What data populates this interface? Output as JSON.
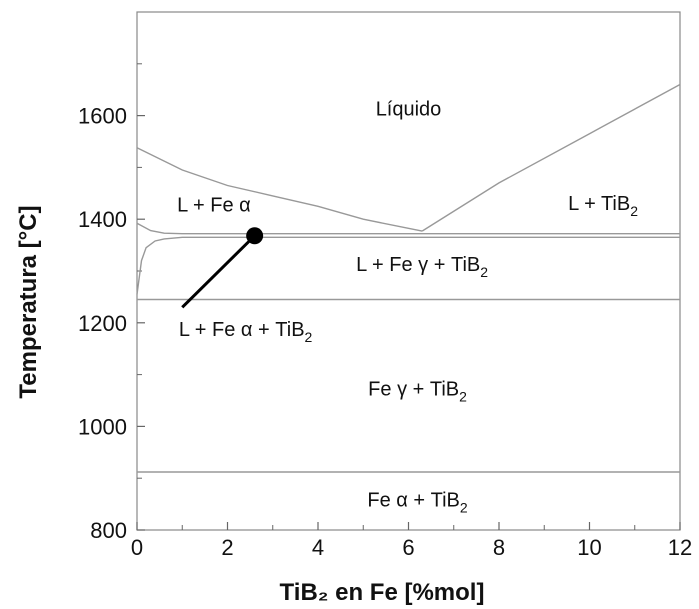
{
  "chart_data": {
    "type": "line",
    "xlabel": "TiB₂ en Fe [%mol]",
    "ylabel": "Temperatura [°C]",
    "xlim": [
      0,
      12
    ],
    "ylim": [
      800,
      1800
    ],
    "x_ticks": [
      0,
      2,
      4,
      6,
      8,
      10,
      12
    ],
    "y_ticks": [
      800,
      1000,
      1200,
      1400,
      1600
    ],
    "grid": false,
    "lines": [
      {
        "x": [
          0,
          1,
          2,
          3,
          4,
          5,
          6.3
        ],
        "y": [
          1538,
          1495,
          1465,
          1445,
          1425,
          1400,
          1377
        ]
      },
      {
        "x": [
          6.3,
          8,
          10,
          12
        ],
        "y": [
          1377,
          1470,
          1565,
          1660
        ]
      },
      {
        "x": [
          0,
          0.3,
          0.6,
          1.0,
          2.0,
          12.0
        ],
        "y": [
          1392,
          1378,
          1373,
          1372,
          1372,
          1372
        ]
      },
      {
        "x": [
          0,
          0.1,
          0.2,
          0.4,
          0.6,
          1.0,
          12.0
        ],
        "y": [
          1255,
          1320,
          1345,
          1358,
          1362,
          1365,
          1365
        ]
      },
      {
        "x": [
          0,
          12
        ],
        "y": [
          1245,
          1245
        ]
      },
      {
        "x": [
          0,
          12
        ],
        "y": [
          912,
          912
        ]
      }
    ],
    "eutectic": {
      "x": 6.3,
      "y": 1377
    },
    "marker": {
      "x": 2.6,
      "y": 1368
    },
    "callout_label_anchor": {
      "x": 1.0,
      "y": 1230
    },
    "regions": [
      {
        "base": "Líquido",
        "sub": "",
        "rest": "",
        "x": 6.0,
        "y": 1600
      },
      {
        "base": "L + Fe α",
        "sub": "",
        "rest": "",
        "x": 1.7,
        "y": 1415
      },
      {
        "base": "L + TiB",
        "sub": "2",
        "rest": "",
        "x": 10.3,
        "y": 1418
      },
      {
        "base": "L + Fe γ + TiB",
        "sub": "2",
        "rest": "",
        "x": 6.3,
        "y": 1300
      },
      {
        "base": "L + Fe α + TiB",
        "sub": "2",
        "rest": "",
        "x": 2.4,
        "y": 1175
      },
      {
        "base": "Fe γ + TiB",
        "sub": "2",
        "rest": "",
        "x": 6.2,
        "y": 1060
      },
      {
        "base": "Fe α + TiB",
        "sub": "2",
        "rest": "",
        "x": 6.2,
        "y": 845
      }
    ]
  }
}
